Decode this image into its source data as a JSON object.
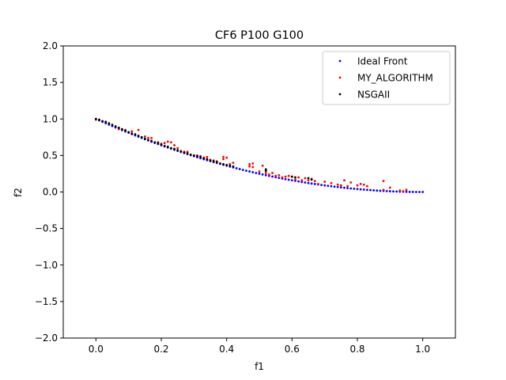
{
  "chart_data": {
    "type": "scatter",
    "title": "CF6 P100 G100",
    "xlabel": "f1",
    "ylabel": "f2",
    "xlim": [
      -0.1,
      1.1
    ],
    "ylim": [
      -2.0,
      2.0
    ],
    "xticks": [
      "0.0",
      "0.2",
      "0.4",
      "0.6",
      "0.8",
      "1.0"
    ],
    "yticks": [
      "2.0",
      "1.5",
      "1.0",
      "0.5",
      "0.0",
      "−0.5",
      "−1.0",
      "−1.5",
      "−2.0"
    ],
    "legend_position": "top-right",
    "grid": false,
    "series": [
      {
        "name": "Ideal Front",
        "color": "#0000ff",
        "generator": "ideal_front",
        "count": 101
      },
      {
        "name": "MY_ALGORITHM",
        "color": "#ff0000",
        "points": [
          [
            0.0,
            0.99
          ],
          [
            0.03,
            0.96
          ],
          [
            0.07,
            0.86
          ],
          [
            0.09,
            0.85
          ],
          [
            0.11,
            0.83
          ],
          [
            0.13,
            0.85
          ],
          [
            0.15,
            0.76
          ],
          [
            0.16,
            0.74
          ],
          [
            0.17,
            0.74
          ],
          [
            0.19,
            0.68
          ],
          [
            0.2,
            0.66
          ],
          [
            0.21,
            0.67
          ],
          [
            0.22,
            0.69
          ],
          [
            0.23,
            0.68
          ],
          [
            0.24,
            0.64
          ],
          [
            0.25,
            0.6
          ],
          [
            0.27,
            0.55
          ],
          [
            0.28,
            0.55
          ],
          [
            0.3,
            0.5
          ],
          [
            0.31,
            0.5
          ],
          [
            0.32,
            0.49
          ],
          [
            0.33,
            0.47
          ],
          [
            0.34,
            0.48
          ],
          [
            0.35,
            0.44
          ],
          [
            0.36,
            0.43
          ],
          [
            0.37,
            0.42
          ],
          [
            0.39,
            0.45
          ],
          [
            0.39,
            0.48
          ],
          [
            0.4,
            0.47
          ],
          [
            0.41,
            0.38
          ],
          [
            0.42,
            0.4
          ],
          [
            0.47,
            0.35
          ],
          [
            0.47,
            0.38
          ],
          [
            0.48,
            0.34
          ],
          [
            0.48,
            0.39
          ],
          [
            0.5,
            0.28
          ],
          [
            0.51,
            0.36
          ],
          [
            0.52,
            0.26
          ],
          [
            0.53,
            0.24
          ],
          [
            0.54,
            0.26
          ],
          [
            0.55,
            0.22
          ],
          [
            0.56,
            0.23
          ],
          [
            0.57,
            0.2
          ],
          [
            0.58,
            0.21
          ],
          [
            0.59,
            0.22
          ],
          [
            0.6,
            0.21
          ],
          [
            0.61,
            0.17
          ],
          [
            0.62,
            0.2
          ],
          [
            0.63,
            0.16
          ],
          [
            0.64,
            0.19
          ],
          [
            0.65,
            0.16
          ],
          [
            0.66,
            0.18
          ],
          [
            0.67,
            0.15
          ],
          [
            0.68,
            0.11
          ],
          [
            0.7,
            0.14
          ],
          [
            0.72,
            0.12
          ],
          [
            0.74,
            0.1
          ],
          [
            0.75,
            0.09
          ],
          [
            0.76,
            0.16
          ],
          [
            0.77,
            0.08
          ],
          [
            0.78,
            0.13
          ],
          [
            0.8,
            0.09
          ],
          [
            0.81,
            0.11
          ],
          [
            0.82,
            0.1
          ],
          [
            0.83,
            0.08
          ],
          [
            0.88,
            0.03
          ],
          [
            0.88,
            0.15
          ],
          [
            0.9,
            0.06
          ],
          [
            0.93,
            0.02
          ],
          [
            0.94,
            0.01
          ],
          [
            0.95,
            0.03
          ]
        ]
      },
      {
        "name": "NSGAII",
        "color": "#000000",
        "points": [
          [
            0.0,
            1.0
          ],
          [
            0.01,
            0.99
          ],
          [
            0.02,
            0.97
          ],
          [
            0.03,
            0.96
          ],
          [
            0.04,
            0.94
          ],
          [
            0.05,
            0.92
          ],
          [
            0.06,
            0.9
          ],
          [
            0.07,
            0.88
          ],
          [
            0.08,
            0.86
          ],
          [
            0.09,
            0.84
          ],
          [
            0.1,
            0.82
          ],
          [
            0.11,
            0.8
          ],
          [
            0.12,
            0.79
          ],
          [
            0.13,
            0.77
          ],
          [
            0.14,
            0.75
          ],
          [
            0.15,
            0.73
          ],
          [
            0.16,
            0.71
          ],
          [
            0.17,
            0.7
          ],
          [
            0.18,
            0.68
          ],
          [
            0.19,
            0.67
          ],
          [
            0.2,
            0.65
          ],
          [
            0.21,
            0.63
          ],
          [
            0.22,
            0.62
          ],
          [
            0.23,
            0.6
          ],
          [
            0.24,
            0.59
          ],
          [
            0.25,
            0.57
          ],
          [
            0.26,
            0.56
          ],
          [
            0.27,
            0.54
          ],
          [
            0.28,
            0.53
          ],
          [
            0.29,
            0.51
          ],
          [
            0.3,
            0.5
          ],
          [
            0.31,
            0.49
          ],
          [
            0.32,
            0.48
          ],
          [
            0.33,
            0.46
          ],
          [
            0.34,
            0.45
          ],
          [
            0.35,
            0.43
          ],
          [
            0.36,
            0.42
          ],
          [
            0.37,
            0.41
          ],
          [
            0.38,
            0.39
          ],
          [
            0.39,
            0.38
          ],
          [
            0.4,
            0.37
          ],
          [
            0.41,
            0.36
          ],
          [
            0.42,
            0.35
          ],
          [
            0.52,
            0.31
          ],
          [
            0.52,
            0.29
          ],
          [
            0.6,
            0.21
          ],
          [
            0.61,
            0.2
          ],
          [
            0.65,
            0.19
          ],
          [
            0.66,
            0.17
          ]
        ]
      }
    ]
  }
}
